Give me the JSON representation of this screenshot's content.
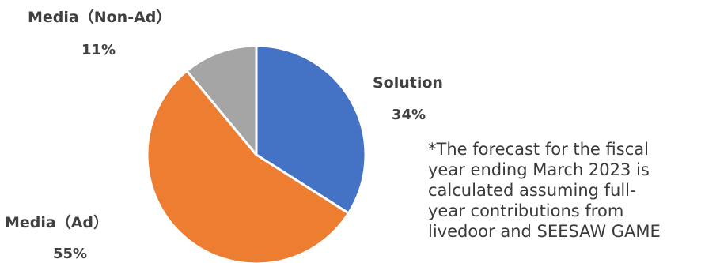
{
  "chart_data": {
    "type": "pie",
    "title": "",
    "slices": [
      {
        "label": "Solution",
        "value": 34,
        "value_label": "34%",
        "color": "#4472C4"
      },
      {
        "label": "Media（Ad）",
        "value": 55,
        "value_label": "55%",
        "color": "#ED7D31"
      },
      {
        "label": "Media（Non-Ad）",
        "value": 11,
        "value_label": "11%",
        "color": "#A5A5A5"
      }
    ],
    "start_angle_deg": 0,
    "direction": "clockwise",
    "legend": "none"
  },
  "note": "*The forecast for the fiscal\nyear ending March 2023 is\ncalculated assuming full-\nyear contributions from\nlivedoor and SEESAW GAME"
}
